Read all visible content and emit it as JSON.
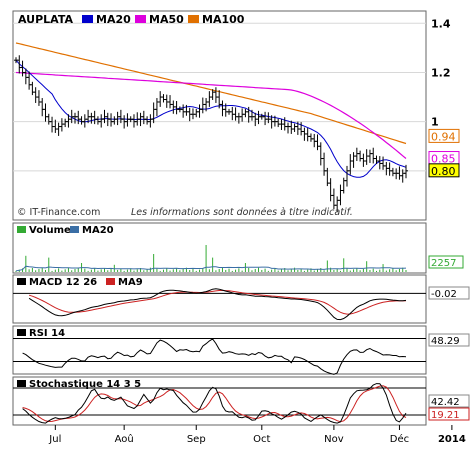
{
  "chart_data": {
    "type": "line",
    "symbol": "AUPLATA",
    "credit": "© IT-Finance.com",
    "disclaimer": "Les informations sont données à titre indicatif.",
    "colors": {
      "price": "#000000",
      "ma20": "#0000cc",
      "ma50": "#dd00dd",
      "ma100": "#e07000",
      "volume": "#33aa33",
      "volume_ma": "#3a6ea5",
      "signal": "#cc2222",
      "grid": "#bbbbbb"
    },
    "x_labels": [
      {
        "label": "Jul",
        "i": 12
      },
      {
        "label": "Aoû",
        "i": 33
      },
      {
        "label": "Sep",
        "i": 55
      },
      {
        "label": "Oct",
        "i": 75
      },
      {
        "label": "Nov",
        "i": 97
      },
      {
        "label": "Déc",
        "i": 117
      },
      {
        "label": "2014",
        "i": 133
      }
    ],
    "main": {
      "legend": [
        "AUPLATA",
        "MA20",
        "MA50",
        "MA100"
      ],
      "y_ticks": [
        "1.4",
        "1.2",
        "1",
        "0.8"
      ],
      "ylim": [
        0.6,
        1.45
      ],
      "close": [
        1.25,
        1.22,
        1.2,
        1.18,
        1.15,
        1.12,
        1.1,
        1.08,
        1.05,
        1.02,
        1.0,
        0.98,
        0.97,
        0.98,
        0.99,
        1.0,
        1.01,
        1.02,
        1.02,
        1.01,
        1.0,
        1.01,
        1.02,
        1.02,
        1.01,
        1.0,
        1.01,
        1.02,
        1.01,
        1.0,
        1.01,
        1.02,
        1.01,
        1.0,
        1.01,
        1.01,
        1.0,
        1.01,
        1.02,
        1.01,
        1.0,
        1.01,
        1.05,
        1.08,
        1.1,
        1.09,
        1.08,
        1.07,
        1.06,
        1.05,
        1.05,
        1.04,
        1.04,
        1.03,
        1.03,
        1.04,
        1.05,
        1.07,
        1.08,
        1.1,
        1.12,
        1.1,
        1.07,
        1.05,
        1.04,
        1.04,
        1.03,
        1.02,
        1.02,
        1.03,
        1.04,
        1.02,
        1.02,
        1.01,
        1.02,
        1.02,
        1.01,
        1.01,
        1.0,
        1.0,
        0.99,
        0.99,
        0.98,
        0.98,
        0.97,
        0.98,
        0.97,
        0.96,
        0.95,
        0.94,
        0.93,
        0.92,
        0.9,
        0.85,
        0.8,
        0.75,
        0.7,
        0.66,
        0.68,
        0.72,
        0.76,
        0.8,
        0.84,
        0.86,
        0.87,
        0.85,
        0.84,
        0.86,
        0.87,
        0.85,
        0.84,
        0.83,
        0.82,
        0.81,
        0.8,
        0.79,
        0.79,
        0.78,
        0.79,
        0.8
      ],
      "last_labels": [
        {
          "text": "0.94",
          "value": 0.94,
          "color": "#e07000"
        },
        {
          "text": "0.85",
          "value": 0.85,
          "color": "#dd00dd"
        },
        {
          "text": "0.80",
          "value": 0.8,
          "color": "#000000",
          "filled": true
        }
      ]
    },
    "volume": {
      "legend": [
        "Volume",
        "MA20"
      ],
      "last_label": "2257",
      "ylim": [
        0,
        100
      ],
      "spikes": [
        {
          "i": 3,
          "v": 45
        },
        {
          "i": 10,
          "v": 40
        },
        {
          "i": 20,
          "v": 25
        },
        {
          "i": 30,
          "v": 20
        },
        {
          "i": 42,
          "v": 50
        },
        {
          "i": 58,
          "v": 75
        },
        {
          "i": 60,
          "v": 40
        },
        {
          "i": 70,
          "v": 25
        },
        {
          "i": 95,
          "v": 32
        },
        {
          "i": 100,
          "v": 38
        },
        {
          "i": 107,
          "v": 30
        },
        {
          "i": 112,
          "v": 22
        }
      ]
    },
    "macd": {
      "legend": [
        "MACD 12 26",
        "MA9"
      ],
      "last_label": "-0.02",
      "ylim": [
        -0.09,
        0.045
      ],
      "zero": 0
    },
    "rsi": {
      "legend": [
        "RSI 14"
      ],
      "last_label": "48.29",
      "ylim": [
        10,
        90
      ],
      "levels": [
        30,
        70
      ]
    },
    "stoch": {
      "legend": [
        "Stochastique 14 3 5"
      ],
      "last_labels": [
        {
          "text": "42.42",
          "color": "#000000"
        },
        {
          "text": "19.21",
          "color": "#cc2222"
        }
      ],
      "ylim": [
        0,
        100
      ],
      "levels": [
        20,
        80
      ]
    }
  }
}
